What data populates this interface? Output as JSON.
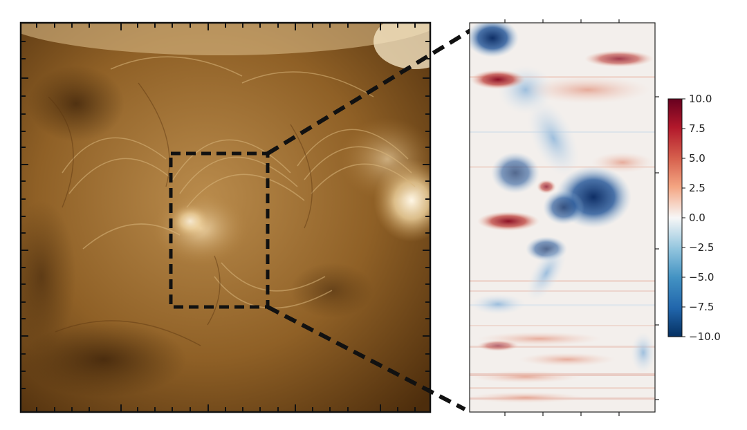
{
  "colors": {
    "solar_dark": "#3b2207",
    "solar_mid": "#8a5a24",
    "solar_light": "#c9a062",
    "solar_bright": "#f3e6c3",
    "map_blue": "#163f7a",
    "map_light_blue": "#bcd6ea",
    "map_white": "#f4f1ee",
    "map_red": "#8c1025",
    "map_light_red": "#efc0ad",
    "frame": "#111111",
    "zoom_box": "#111111"
  },
  "colorbar": {
    "min": -10.0,
    "max": 10.0,
    "tick_labels": [
      "10.0",
      "7.5",
      "5.0",
      "2.5",
      "0.0",
      "−2.5",
      "−5.0",
      "−7.5",
      "−10.0"
    ],
    "colormap": "red-white-blue"
  },
  "icons": {
    "zoom_connector": "dashed-line-icon"
  }
}
